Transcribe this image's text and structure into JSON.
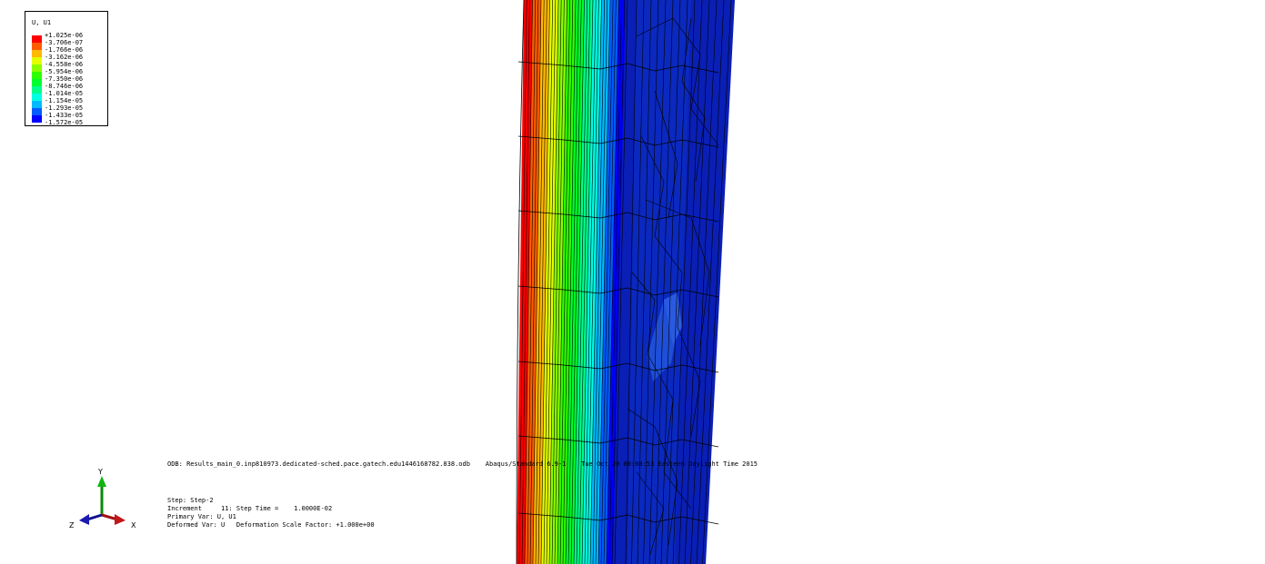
{
  "legend": {
    "title": "U, U1",
    "entries": [
      {
        "label": "+1.025e-06",
        "color": "#ff0000"
      },
      {
        "label": "-3.706e-07",
        "color": "#ff5c00"
      },
      {
        "label": "-1.766e-06",
        "color": "#ffb900"
      },
      {
        "label": "-3.162e-06",
        "color": "#e3ff00"
      },
      {
        "label": "-4.558e-06",
        "color": "#8bff00"
      },
      {
        "label": "-5.954e-06",
        "color": "#2eff00"
      },
      {
        "label": "-7.350e-06",
        "color": "#00ff2e"
      },
      {
        "label": "-8.746e-06",
        "color": "#00ff8b"
      },
      {
        "label": "-1.014e-05",
        "color": "#00ffe3"
      },
      {
        "label": "-1.154e-05",
        "color": "#00b9ff"
      },
      {
        "label": "-1.293e-05",
        "color": "#005cff"
      },
      {
        "label": "-1.433e-05",
        "color": "#0000ff"
      },
      {
        "label": "-1.572e-05",
        "color": ""
      }
    ]
  },
  "odb_line": "ODB: Results_main_0.inp810973.dedicated-sched.pace.gatech.edu1446168782.838.odb    Abaqus/Standard 6.9-1    Tue Oct 20 00:08:53 Eastern Daylight Time 2015",
  "step": {
    "step_line": "Step: Step-2",
    "increment_line": "Increment     11: Step Time =    1.0000E-02",
    "primary_var_line": "Primary Var: U, U1",
    "deformed_var_line": "Deformed Var: U   Deformation Scale Factor: +1.000e+00"
  },
  "triad": {
    "x_label": "X",
    "y_label": "Y",
    "z_label": "Z"
  },
  "colors": {
    "mesh_dark_blue": "#0a1fb5",
    "mesh_lines": "#000000",
    "background": "#ffffff"
  }
}
